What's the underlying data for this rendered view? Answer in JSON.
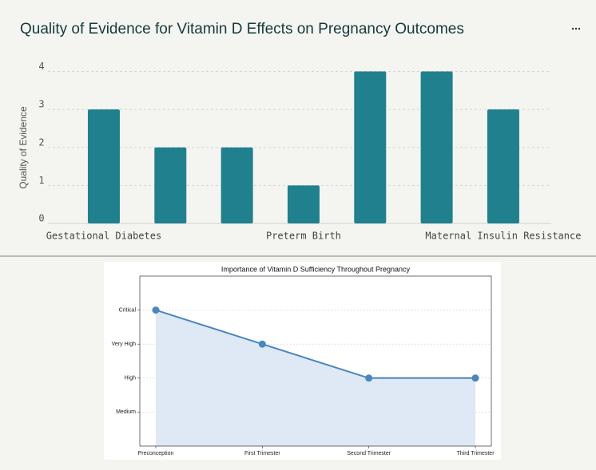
{
  "chart_data": [
    {
      "type": "bar",
      "title": "Quality of Evidence for Vitamin D Effects on Pregnancy Outcomes",
      "ylabel": "Quality of Evidence",
      "categories": [
        "Gestational Diabetes",
        null,
        null,
        "Preterm Birth",
        null,
        null,
        "Maternal Insulin Resistance"
      ],
      "values": [
        3,
        2,
        2,
        1,
        4,
        4,
        3
      ],
      "color": "#21808d",
      "ylim": [
        0,
        4.2
      ],
      "yticks": [
        0,
        1,
        2,
        3,
        4
      ],
      "grid": true
    },
    {
      "type": "line",
      "title": "Importance of Vitamin D Sufficiency Throughout Pregnancy",
      "categories": [
        "Preconception",
        "First Trimester",
        "Second Trimester",
        "Third Trimester"
      ],
      "values": [
        4,
        3,
        2,
        2
      ],
      "color": "#4a86c0",
      "fill": "#dbe6f4",
      "ylim": [
        0,
        5
      ],
      "yticks": [
        {
          "value": 1,
          "label": "Medium"
        },
        {
          "value": 2,
          "label": "High"
        },
        {
          "value": 3,
          "label": "Very High"
        },
        {
          "value": 4,
          "label": "Critical"
        }
      ],
      "grid": true
    }
  ]
}
